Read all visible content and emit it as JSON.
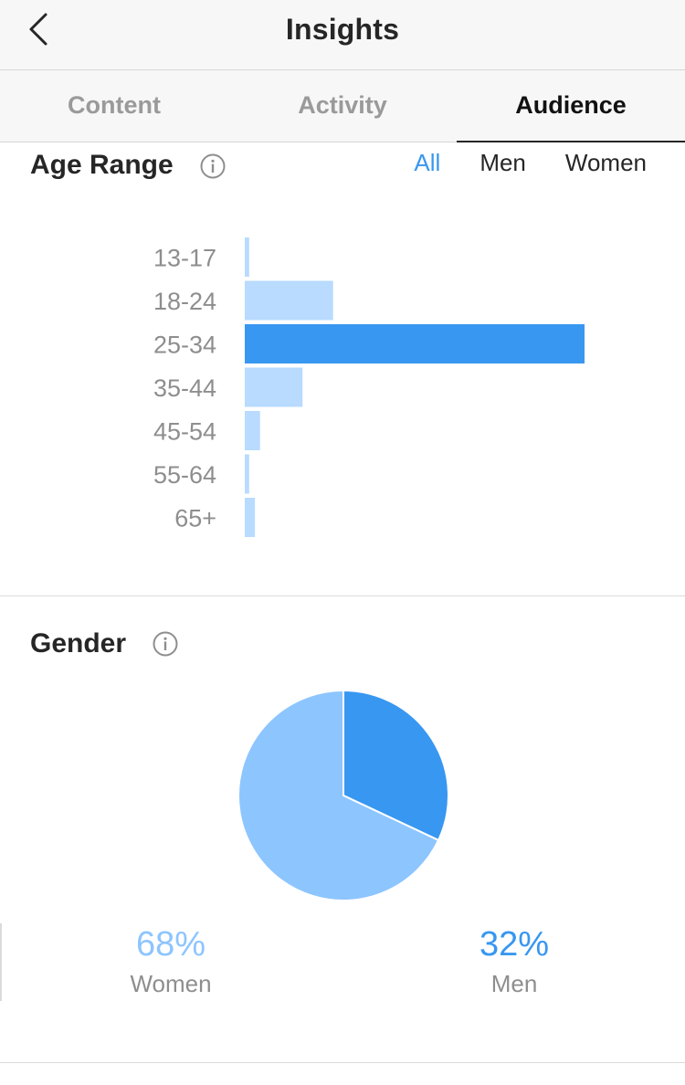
{
  "header": {
    "title": "Insights",
    "back_icon": "chevron-left-icon"
  },
  "tabs": [
    {
      "label": "Content",
      "active": false
    },
    {
      "label": "Activity",
      "active": false
    },
    {
      "label": "Audience",
      "active": true
    }
  ],
  "age_range": {
    "title": "Age Range",
    "filters": [
      {
        "label": "All",
        "active": true
      },
      {
        "label": "Men",
        "active": false
      },
      {
        "label": "Women",
        "active": false
      }
    ]
  },
  "gender": {
    "title": "Gender",
    "women": {
      "value": "68%",
      "label": "Women"
    },
    "men": {
      "value": "32%",
      "label": "Men"
    }
  },
  "colors": {
    "accent": "#3897f0",
    "light_bar": "#b8dbff",
    "pie_light": "#8dc5ff",
    "pie_dark": "#3897f0"
  },
  "chart_data": [
    {
      "type": "bar",
      "orientation": "horizontal",
      "categories": [
        "13-17",
        "18-24",
        "25-34",
        "35-44",
        "45-54",
        "55-64",
        "65+"
      ],
      "values": [
        1.3,
        26,
        100,
        17,
        4.5,
        1.3,
        3
      ],
      "highlight": "25-34",
      "xlim": [
        0,
        100
      ]
    },
    {
      "type": "pie",
      "categories": [
        "Men",
        "Women"
      ],
      "values": [
        32,
        68
      ]
    }
  ]
}
